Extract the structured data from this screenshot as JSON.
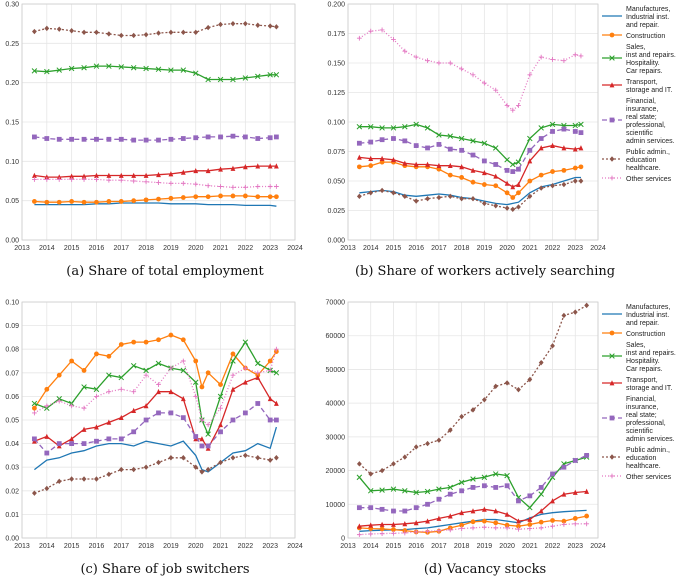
{
  "figure": {
    "x_ticks": [
      "2013",
      "2014",
      "2015",
      "2016",
      "2017",
      "2018",
      "2019",
      "2020",
      "2021",
      "2022",
      "2023",
      "2024"
    ]
  },
  "legend": {
    "entries": [
      {
        "key": "manufactures",
        "lines": [
          "Manufactures,",
          "Industrial inst.",
          "and repair."
        ]
      },
      {
        "key": "construction",
        "lines": [
          "Construction"
        ]
      },
      {
        "key": "sales",
        "lines": [
          "Sales,",
          "inst and repairs.",
          "Hospitality.",
          "Car repairs."
        ]
      },
      {
        "key": "transport",
        "lines": [
          "Transport,",
          "storage and IT."
        ]
      },
      {
        "key": "financial",
        "lines": [
          "Financial,",
          "insurance,",
          "real state;",
          "professional,",
          "scientific",
          "admin services."
        ]
      },
      {
        "key": "public",
        "lines": [
          "Public admin.,",
          "education",
          "healthcare."
        ]
      },
      {
        "key": "other",
        "lines": [
          "Other services"
        ]
      }
    ]
  },
  "series_style": {
    "manufactures": {
      "color": "#1f77b4",
      "marker": "none",
      "dash": ""
    },
    "construction": {
      "color": "#ff7f0e",
      "marker": "circle",
      "dash": ""
    },
    "sales": {
      "color": "#2ca02c",
      "marker": "x",
      "dash": ""
    },
    "transport": {
      "color": "#d62728",
      "marker": "triangle",
      "dash": ""
    },
    "financial": {
      "color": "#9467bd",
      "marker": "square",
      "dash": "5,3"
    },
    "public": {
      "color": "#8c564b",
      "marker": "diamond",
      "dash": "2,2"
    },
    "other": {
      "color": "#e377c2",
      "marker": "plus",
      "dash": "1,2"
    }
  },
  "chart_data": [
    {
      "id": "a",
      "type": "line",
      "title": "(a) Share of total employment",
      "caption": "(a) Share of total employment",
      "xlim": [
        2013,
        2024
      ],
      "ylim": [
        0,
        0.3
      ],
      "yticks": [
        0,
        0.05,
        0.1,
        0.15,
        0.2,
        0.25,
        0.3
      ],
      "ytick_labels": [
        "0.00",
        "0.05",
        "0.10",
        "0.15",
        "0.20",
        "0.25",
        "0.30"
      ],
      "x": [
        2013.5,
        2014,
        2014.5,
        2015,
        2015.5,
        2016,
        2016.5,
        2017,
        2017.5,
        2018,
        2018.5,
        2019,
        2019.5,
        2020,
        2020.5,
        2021,
        2021.5,
        2022,
        2022.5,
        2023,
        2023.25
      ],
      "series": [
        {
          "name": "manufactures",
          "values": [
            0.045,
            0.045,
            0.045,
            0.045,
            0.045,
            0.046,
            0.046,
            0.047,
            0.047,
            0.047,
            0.047,
            0.046,
            0.046,
            0.046,
            0.045,
            0.045,
            0.045,
            0.044,
            0.044,
            0.044,
            0.043
          ]
        },
        {
          "name": "construction",
          "values": [
            0.049,
            0.048,
            0.048,
            0.049,
            0.048,
            0.048,
            0.049,
            0.049,
            0.05,
            0.051,
            0.052,
            0.053,
            0.054,
            0.055,
            0.055,
            0.056,
            0.056,
            0.056,
            0.055,
            0.055,
            0.055
          ]
        },
        {
          "name": "sales",
          "values": [
            0.215,
            0.214,
            0.216,
            0.218,
            0.219,
            0.221,
            0.221,
            0.22,
            0.219,
            0.218,
            0.217,
            0.216,
            0.216,
            0.212,
            0.204,
            0.204,
            0.204,
            0.206,
            0.208,
            0.21,
            0.21
          ]
        },
        {
          "name": "transport",
          "values": [
            0.082,
            0.08,
            0.08,
            0.081,
            0.081,
            0.082,
            0.082,
            0.082,
            0.082,
            0.082,
            0.083,
            0.084,
            0.086,
            0.088,
            0.088,
            0.09,
            0.091,
            0.093,
            0.094,
            0.094,
            0.094
          ]
        },
        {
          "name": "financial",
          "values": [
            0.131,
            0.129,
            0.128,
            0.128,
            0.128,
            0.128,
            0.128,
            0.128,
            0.127,
            0.127,
            0.127,
            0.128,
            0.129,
            0.13,
            0.131,
            0.131,
            0.132,
            0.131,
            0.129,
            0.13,
            0.131
          ]
        },
        {
          "name": "public",
          "values": [
            0.265,
            0.269,
            0.268,
            0.266,
            0.264,
            0.264,
            0.262,
            0.26,
            0.26,
            0.261,
            0.263,
            0.264,
            0.264,
            0.264,
            0.27,
            0.274,
            0.275,
            0.275,
            0.273,
            0.272,
            0.271
          ]
        },
        {
          "name": "other",
          "values": [
            0.077,
            0.077,
            0.077,
            0.077,
            0.077,
            0.077,
            0.076,
            0.076,
            0.075,
            0.074,
            0.073,
            0.072,
            0.072,
            0.071,
            0.069,
            0.068,
            0.067,
            0.067,
            0.068,
            0.068,
            0.068
          ]
        }
      ]
    },
    {
      "id": "b",
      "type": "line",
      "title": "(b) Share of workers actively searching",
      "caption": "(b) Share of workers actively searching",
      "xlim": [
        2013,
        2024
      ],
      "ylim": [
        0,
        0.2
      ],
      "yticks": [
        0,
        0.025,
        0.05,
        0.075,
        0.1,
        0.125,
        0.15,
        0.175,
        0.2
      ],
      "ytick_labels": [
        "0.000",
        "0.025",
        "0.050",
        "0.075",
        "0.100",
        "0.125",
        "0.150",
        "0.175",
        "0.200"
      ],
      "x": [
        2013.5,
        2014,
        2014.5,
        2015,
        2015.5,
        2016,
        2016.5,
        2017,
        2017.5,
        2018,
        2018.5,
        2019,
        2019.5,
        2020,
        2020.25,
        2020.5,
        2021,
        2021.5,
        2022,
        2022.5,
        2023,
        2023.25
      ],
      "series": [
        {
          "name": "manufactures",
          "values": [
            0.04,
            0.041,
            0.042,
            0.041,
            0.038,
            0.037,
            0.038,
            0.039,
            0.038,
            0.036,
            0.035,
            0.033,
            0.031,
            0.03,
            0.031,
            0.032,
            0.04,
            0.045,
            0.047,
            0.05,
            0.053,
            0.053
          ]
        },
        {
          "name": "construction",
          "values": [
            0.062,
            0.063,
            0.066,
            0.066,
            0.063,
            0.062,
            0.062,
            0.06,
            0.055,
            0.053,
            0.049,
            0.047,
            0.046,
            0.04,
            0.036,
            0.04,
            0.05,
            0.055,
            0.058,
            0.059,
            0.061,
            0.062
          ]
        },
        {
          "name": "sales",
          "values": [
            0.096,
            0.096,
            0.095,
            0.095,
            0.096,
            0.098,
            0.095,
            0.089,
            0.088,
            0.086,
            0.084,
            0.082,
            0.078,
            0.068,
            0.064,
            0.066,
            0.086,
            0.095,
            0.098,
            0.097,
            0.097,
            0.098
          ]
        },
        {
          "name": "transport",
          "values": [
            0.07,
            0.069,
            0.069,
            0.068,
            0.065,
            0.064,
            0.064,
            0.063,
            0.063,
            0.062,
            0.059,
            0.057,
            0.054,
            0.048,
            0.045,
            0.047,
            0.067,
            0.078,
            0.08,
            0.078,
            0.077,
            0.078
          ]
        },
        {
          "name": "financial",
          "values": [
            0.082,
            0.083,
            0.085,
            0.086,
            0.084,
            0.08,
            0.078,
            0.081,
            0.077,
            0.076,
            0.072,
            0.067,
            0.064,
            0.059,
            0.058,
            0.06,
            0.076,
            0.086,
            0.092,
            0.094,
            0.092,
            0.091
          ]
        },
        {
          "name": "public",
          "values": [
            0.037,
            0.04,
            0.042,
            0.04,
            0.037,
            0.033,
            0.035,
            0.036,
            0.037,
            0.035,
            0.035,
            0.031,
            0.029,
            0.027,
            0.026,
            0.028,
            0.037,
            0.044,
            0.046,
            0.047,
            0.05,
            0.05
          ]
        },
        {
          "name": "other",
          "values": [
            0.171,
            0.177,
            0.178,
            0.17,
            0.16,
            0.155,
            0.152,
            0.15,
            0.15,
            0.145,
            0.14,
            0.133,
            0.127,
            0.114,
            0.11,
            0.114,
            0.14,
            0.155,
            0.153,
            0.152,
            0.157,
            0.156
          ]
        }
      ]
    },
    {
      "id": "c",
      "type": "line",
      "title": "(c) Share of job switchers",
      "caption": "(c) Share of job switchers",
      "xlim": [
        2013,
        2024
      ],
      "ylim": [
        0,
        0.1
      ],
      "yticks": [
        0,
        0.01,
        0.02,
        0.03,
        0.04,
        0.05,
        0.06,
        0.07,
        0.08,
        0.09,
        0.1
      ],
      "ytick_labels": [
        "0.00",
        "0.01",
        "0.02",
        "0.03",
        "0.04",
        "0.05",
        "0.06",
        "0.07",
        "0.08",
        "0.09",
        "0.10"
      ],
      "x": [
        2013.5,
        2014,
        2014.5,
        2015,
        2015.5,
        2016,
        2016.5,
        2017,
        2017.5,
        2018,
        2018.5,
        2019,
        2019.5,
        2020,
        2020.25,
        2020.5,
        2021,
        2021.5,
        2022,
        2022.5,
        2023,
        2023.25
      ],
      "series": [
        {
          "name": "manufactures",
          "values": [
            0.029,
            0.033,
            0.034,
            0.036,
            0.037,
            0.039,
            0.04,
            0.04,
            0.039,
            0.041,
            0.04,
            0.039,
            0.041,
            0.035,
            0.029,
            0.028,
            0.032,
            0.036,
            0.037,
            0.04,
            0.038,
            0.047
          ]
        },
        {
          "name": "construction",
          "values": [
            0.055,
            0.063,
            0.069,
            0.075,
            0.071,
            0.078,
            0.077,
            0.082,
            0.083,
            0.083,
            0.084,
            0.086,
            0.084,
            0.075,
            0.064,
            0.07,
            0.065,
            0.078,
            0.072,
            0.069,
            0.075,
            0.079
          ]
        },
        {
          "name": "sales",
          "values": [
            0.057,
            0.055,
            0.059,
            0.057,
            0.064,
            0.063,
            0.069,
            0.068,
            0.073,
            0.071,
            0.074,
            0.072,
            0.071,
            0.066,
            0.05,
            0.044,
            0.06,
            0.075,
            0.083,
            0.074,
            0.071,
            0.07
          ]
        },
        {
          "name": "transport",
          "values": [
            0.041,
            0.043,
            0.039,
            0.042,
            0.046,
            0.047,
            0.049,
            0.051,
            0.054,
            0.056,
            0.062,
            0.062,
            0.059,
            0.042,
            0.042,
            0.038,
            0.048,
            0.063,
            0.066,
            0.068,
            0.059,
            0.057
          ]
        },
        {
          "name": "financial",
          "values": [
            0.042,
            0.036,
            0.04,
            0.04,
            0.04,
            0.041,
            0.042,
            0.042,
            0.045,
            0.05,
            0.053,
            0.053,
            0.051,
            0.043,
            0.039,
            0.039,
            0.045,
            0.05,
            0.053,
            0.057,
            0.05,
            0.05
          ]
        },
        {
          "name": "public",
          "values": [
            0.019,
            0.021,
            0.024,
            0.025,
            0.025,
            0.025,
            0.027,
            0.029,
            0.029,
            0.03,
            0.032,
            0.034,
            0.034,
            0.03,
            0.028,
            0.029,
            0.032,
            0.034,
            0.035,
            0.034,
            0.033,
            0.034
          ]
        },
        {
          "name": "other",
          "values": [
            0.053,
            0.056,
            0.058,
            0.056,
            0.055,
            0.06,
            0.062,
            0.063,
            0.062,
            0.069,
            0.065,
            0.072,
            0.075,
            0.06,
            0.05,
            0.048,
            0.055,
            0.069,
            0.072,
            0.07,
            0.071,
            0.08
          ]
        }
      ]
    },
    {
      "id": "d",
      "type": "line",
      "title": "(d) Vacancy stocks",
      "caption": "(d) Vacancy stocks",
      "xlim": [
        2013,
        2024
      ],
      "ylim": [
        0,
        70000
      ],
      "yticks": [
        0,
        10000,
        20000,
        30000,
        40000,
        50000,
        60000,
        70000
      ],
      "ytick_labels": [
        "0",
        "10000",
        "20000",
        "30000",
        "40000",
        "50000",
        "60000",
        "70000"
      ],
      "x": [
        2013.5,
        2014,
        2014.5,
        2015,
        2015.5,
        2016,
        2016.5,
        2017,
        2017.5,
        2018,
        2018.5,
        2019,
        2019.5,
        2020,
        2020.5,
        2021,
        2021.5,
        2022,
        2022.5,
        2023,
        2023.5
      ],
      "series": [
        {
          "name": "manufactures",
          "values": [
            2000,
            2200,
            2300,
            2400,
            2500,
            2800,
            3000,
            3500,
            4000,
            4500,
            5000,
            5500,
            5500,
            5000,
            4500,
            6000,
            7000,
            7500,
            7800,
            8000,
            8200
          ]
        },
        {
          "name": "construction",
          "values": [
            3000,
            2800,
            2700,
            2500,
            2200,
            1800,
            1700,
            2000,
            3000,
            3800,
            4800,
            5000,
            4500,
            3800,
            3500,
            4000,
            4700,
            5200,
            5000,
            5800,
            6500
          ]
        },
        {
          "name": "sales",
          "values": [
            18000,
            14000,
            14200,
            14500,
            14000,
            13500,
            13800,
            14500,
            15000,
            16500,
            17500,
            18000,
            19000,
            18500,
            12000,
            9000,
            13000,
            18000,
            22000,
            23000,
            24000
          ]
        },
        {
          "name": "transport",
          "values": [
            3500,
            3800,
            4000,
            4000,
            4200,
            4500,
            5000,
            5800,
            6500,
            7500,
            8000,
            8500,
            8000,
            7000,
            5000,
            5500,
            8000,
            11000,
            13000,
            13500,
            13800
          ]
        },
        {
          "name": "financial",
          "values": [
            9000,
            9000,
            8500,
            8000,
            8000,
            9000,
            10000,
            11500,
            13000,
            14000,
            15000,
            15500,
            15000,
            15500,
            11000,
            12500,
            15000,
            19000,
            21000,
            23000,
            24500
          ]
        },
        {
          "name": "public",
          "values": [
            22000,
            19000,
            20000,
            22000,
            24000,
            27000,
            28000,
            29000,
            32000,
            36000,
            38000,
            41000,
            45000,
            46000,
            44000,
            47000,
            52000,
            57000,
            66000,
            67000,
            69000
          ]
        },
        {
          "name": "other",
          "values": [
            1000,
            1200,
            1300,
            1400,
            1500,
            1800,
            2000,
            2200,
            2400,
            2800,
            3000,
            3200,
            3000,
            3000,
            2600,
            2800,
            3000,
            3500,
            4000,
            4200,
            4200
          ]
        }
      ]
    }
  ]
}
